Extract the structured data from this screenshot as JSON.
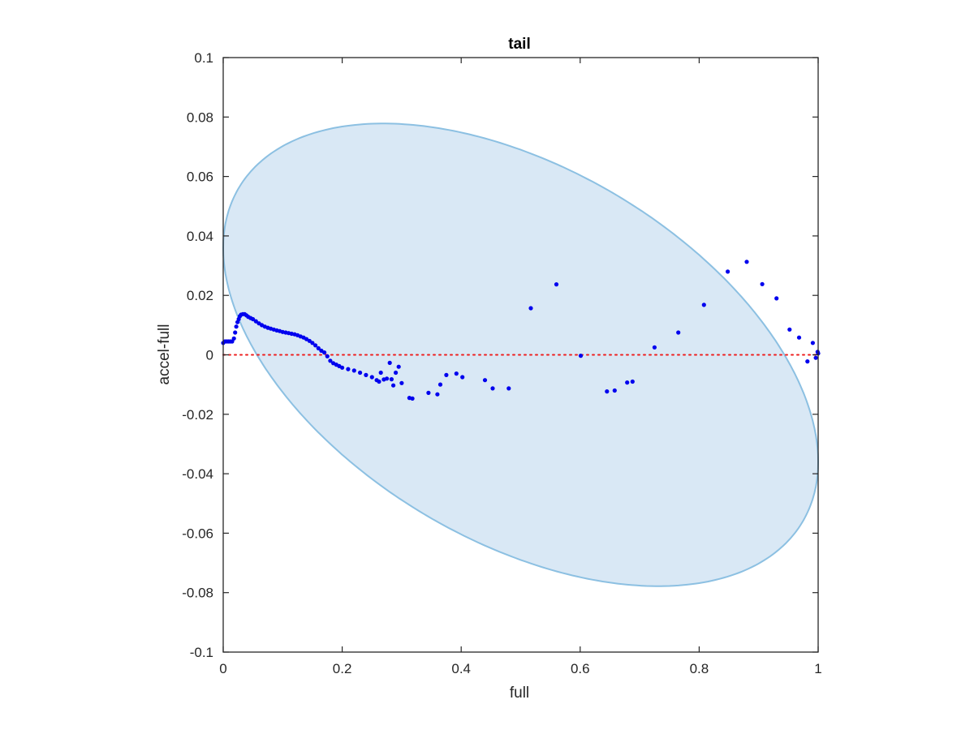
{
  "chart_data": {
    "type": "scatter",
    "title": "tail",
    "xlabel": "full",
    "ylabel": "accel-full",
    "xlim": [
      0,
      1
    ],
    "ylim": [
      -0.1,
      0.1
    ],
    "xticks": [
      0,
      0.2,
      0.4,
      0.6,
      0.8,
      1
    ],
    "xtick_labels": [
      "0",
      "0.2",
      "0.4",
      "0.6",
      "0.8",
      "1"
    ],
    "yticks": [
      -0.1,
      -0.08,
      -0.06,
      -0.04,
      -0.02,
      0,
      0.02,
      0.04,
      0.06,
      0.08,
      0.1
    ],
    "ytick_labels": [
      "-0.1",
      "-0.08",
      "-0.06",
      "-0.04",
      "-0.02",
      "0",
      "0.02",
      "0.04",
      "0.06",
      "0.08",
      "0.1"
    ],
    "grid": false,
    "colors": {
      "points": "#0000ee",
      "region_fill": "#d9e8f5",
      "region_edge": "#8cc0e2",
      "zero_line": "#ee2020",
      "axes": "#262626"
    },
    "region": {
      "shape": "ellipse",
      "center": [
        0.5,
        0
      ],
      "radius_x": 0.5,
      "radius_y": 0.069,
      "tilt_points": [
        [
          0.0,
          0.018
        ],
        [
          0.1,
          0.058
        ],
        [
          0.2,
          0.067
        ],
        [
          0.3,
          0.069
        ],
        [
          0.4,
          0.069
        ],
        [
          0.5,
          0.066
        ],
        [
          0.6,
          0.058
        ],
        [
          0.7,
          0.045
        ],
        [
          0.8,
          0.03
        ],
        [
          0.9,
          0.012
        ],
        [
          1.0,
          -0.018
        ]
      ]
    },
    "reference_line": {
      "y": 0,
      "style": "dotted"
    },
    "series": [
      {
        "values": [
          [
            0.0,
            0.004
          ],
          [
            0.003,
            0.0045
          ],
          [
            0.006,
            0.0045
          ],
          [
            0.009,
            0.0045
          ],
          [
            0.012,
            0.0045
          ],
          [
            0.015,
            0.0045
          ],
          [
            0.018,
            0.0055
          ],
          [
            0.02,
            0.0075
          ],
          [
            0.022,
            0.0095
          ],
          [
            0.024,
            0.011
          ],
          [
            0.026,
            0.012
          ],
          [
            0.028,
            0.013
          ],
          [
            0.03,
            0.0135
          ],
          [
            0.033,
            0.0137
          ],
          [
            0.036,
            0.0137
          ],
          [
            0.039,
            0.0133
          ],
          [
            0.042,
            0.0128
          ],
          [
            0.046,
            0.0124
          ],
          [
            0.05,
            0.012
          ],
          [
            0.055,
            0.0113
          ],
          [
            0.06,
            0.0106
          ],
          [
            0.065,
            0.01
          ],
          [
            0.07,
            0.0095
          ],
          [
            0.075,
            0.0091
          ],
          [
            0.08,
            0.0088
          ],
          [
            0.085,
            0.0085
          ],
          [
            0.09,
            0.0082
          ],
          [
            0.095,
            0.008
          ],
          [
            0.1,
            0.0077
          ],
          [
            0.105,
            0.0075
          ],
          [
            0.11,
            0.0073
          ],
          [
            0.115,
            0.0071
          ],
          [
            0.12,
            0.0069
          ],
          [
            0.125,
            0.0066
          ],
          [
            0.13,
            0.0062
          ],
          [
            0.135,
            0.0058
          ],
          [
            0.14,
            0.0053
          ],
          [
            0.145,
            0.0047
          ],
          [
            0.15,
            0.004
          ],
          [
            0.155,
            0.0032
          ],
          [
            0.16,
            0.0022
          ],
          [
            0.165,
            0.0014
          ],
          [
            0.17,
            0.0008
          ],
          [
            0.175,
            -0.0005
          ],
          [
            0.18,
            -0.002
          ],
          [
            0.185,
            -0.0028
          ],
          [
            0.19,
            -0.0033
          ],
          [
            0.195,
            -0.0038
          ],
          [
            0.2,
            -0.0043
          ],
          [
            0.21,
            -0.0048
          ],
          [
            0.22,
            -0.0053
          ],
          [
            0.23,
            -0.006
          ],
          [
            0.24,
            -0.0068
          ],
          [
            0.25,
            -0.0075
          ],
          [
            0.258,
            -0.0085
          ],
          [
            0.262,
            -0.009
          ],
          [
            0.265,
            -0.006
          ],
          [
            0.27,
            -0.0083
          ],
          [
            0.275,
            -0.008
          ],
          [
            0.28,
            -0.0027
          ],
          [
            0.283,
            -0.0082
          ],
          [
            0.286,
            -0.0103
          ],
          [
            0.29,
            -0.006
          ],
          [
            0.295,
            -0.004
          ],
          [
            0.3,
            -0.0095
          ],
          [
            0.313,
            -0.0145
          ],
          [
            0.318,
            -0.0147
          ],
          [
            0.345,
            -0.0128
          ],
          [
            0.36,
            -0.0133
          ],
          [
            0.365,
            -0.01
          ],
          [
            0.375,
            -0.0068
          ],
          [
            0.392,
            -0.0063
          ],
          [
            0.402,
            -0.0075
          ],
          [
            0.44,
            -0.0085
          ],
          [
            0.453,
            -0.0113
          ],
          [
            0.48,
            -0.0113
          ],
          [
            0.517,
            0.0157
          ],
          [
            0.56,
            0.0237
          ],
          [
            0.601,
            -0.0003
          ],
          [
            0.645,
            -0.0123
          ],
          [
            0.658,
            -0.012
          ],
          [
            0.679,
            -0.0093
          ],
          [
            0.688,
            -0.009
          ],
          [
            0.725,
            0.0025
          ],
          [
            0.765,
            0.0075
          ],
          [
            0.808,
            0.0168
          ],
          [
            0.848,
            0.028
          ],
          [
            0.88,
            0.0313
          ],
          [
            0.906,
            0.0238
          ],
          [
            0.93,
            0.019
          ],
          [
            0.952,
            0.0085
          ],
          [
            0.968,
            0.0058
          ],
          [
            0.982,
            -0.0022
          ],
          [
            0.991,
            0.004
          ],
          [
            0.996,
            -0.001
          ],
          [
            0.999,
            0.001
          ],
          [
            1.0,
            0.0005
          ]
        ]
      }
    ]
  }
}
